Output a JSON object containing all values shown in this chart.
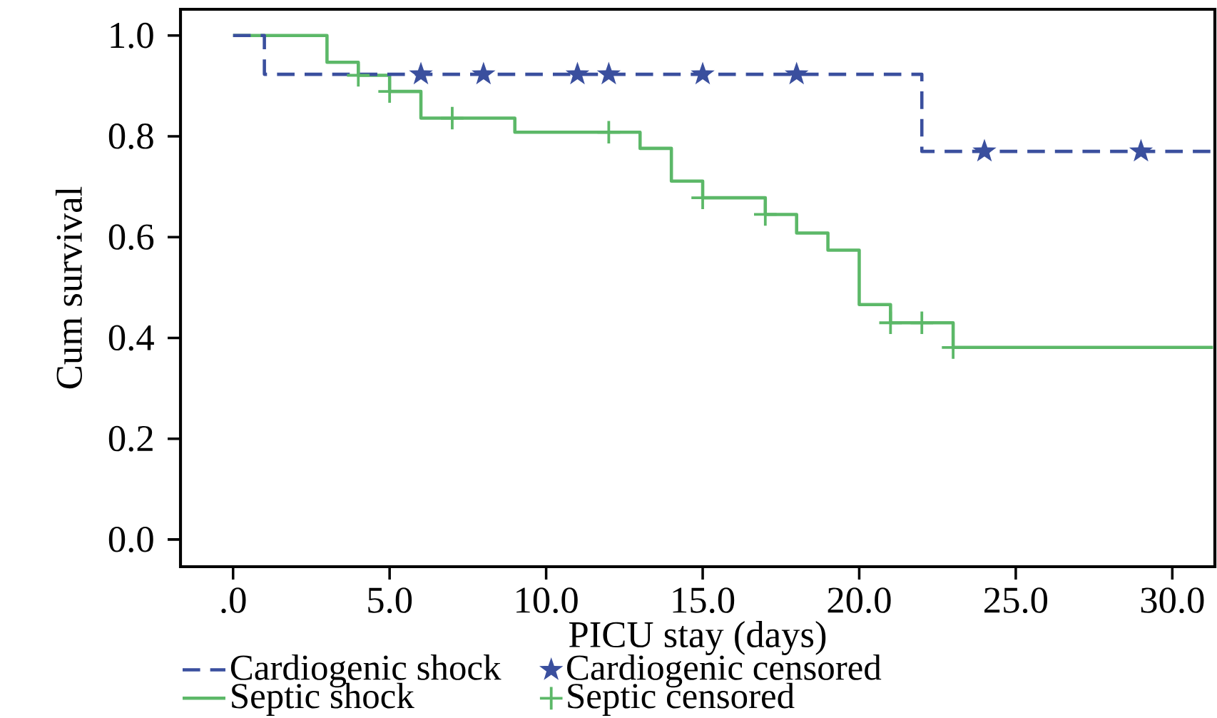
{
  "chart_data": {
    "type": "step",
    "xlabel": "PICU stay (days)",
    "ylabel": "Cum survival",
    "xlim": [
      -1.68,
      31.36
    ],
    "ylim": [
      -0.054,
      1.052
    ],
    "xticks": [
      {
        "value": 0,
        "label": ".0"
      },
      {
        "value": 5,
        "label": "5.0"
      },
      {
        "value": 10,
        "label": "10.0"
      },
      {
        "value": 15,
        "label": "15.0"
      },
      {
        "value": 20,
        "label": "20.0"
      },
      {
        "value": 25,
        "label": "25.0"
      },
      {
        "value": 30,
        "label": "30.0"
      }
    ],
    "yticks": [
      {
        "value": 0,
        "label": "0.0"
      },
      {
        "value": 0.2,
        "label": "0.2"
      },
      {
        "value": 0.4,
        "label": "0.4"
      },
      {
        "value": 0.6,
        "label": "0.6"
      },
      {
        "value": 0.8,
        "label": "0.8"
      },
      {
        "value": 1,
        "label": "1.0"
      }
    ],
    "legend": "bottom",
    "series": [
      {
        "name": "Cardiogenic shock",
        "line_style": "dashed",
        "marker": "none",
        "color": "#3a4f9e",
        "x": [
          0,
          1,
          22,
          31.3
        ],
        "values": [
          1.0,
          0.923,
          0.77,
          0.77
        ]
      },
      {
        "name": "Cardiogenic censored",
        "type": "scatter",
        "marker": "star",
        "color": "#3a4f9e",
        "x": [
          6,
          8,
          11,
          12,
          15,
          18,
          24,
          29
        ],
        "values": [
          0.923,
          0.923,
          0.923,
          0.923,
          0.923,
          0.923,
          0.77,
          0.77
        ]
      },
      {
        "name": "Septic shock",
        "line_style": "solid",
        "marker": "none",
        "color": "#5cb868",
        "x": [
          0,
          3,
          4,
          5,
          6,
          9,
          13,
          14,
          15,
          17,
          18,
          19,
          20,
          21,
          23,
          31.3
        ],
        "values": [
          1.0,
          0.947,
          0.921,
          0.889,
          0.836,
          0.808,
          0.776,
          0.711,
          0.678,
          0.645,
          0.608,
          0.574,
          0.466,
          0.43,
          0.381,
          0.381
        ]
      },
      {
        "name": "Septic censored",
        "type": "scatter",
        "marker": "cross",
        "color": "#5cb868",
        "x": [
          4,
          5,
          7,
          12,
          15,
          17,
          21,
          22,
          23
        ],
        "values": [
          0.921,
          0.889,
          0.836,
          0.808,
          0.678,
          0.645,
          0.43,
          0.43,
          0.381
        ]
      }
    ]
  }
}
